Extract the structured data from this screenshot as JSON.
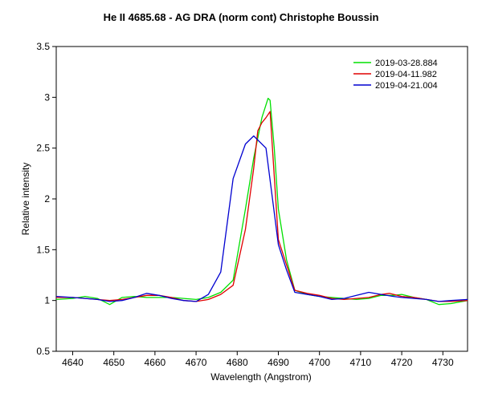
{
  "chart_data": {
    "type": "line",
    "title": "He II 4685.68 - AG DRA (norm cont)   Christophe Boussin",
    "xlabel": "Wavelength (Angstrom)",
    "ylabel": "Relative intensity",
    "xlim": [
      4636,
      4736
    ],
    "ylim": [
      0.5,
      3.5
    ],
    "xticks": [
      4640,
      4650,
      4660,
      4670,
      4680,
      4690,
      4700,
      4710,
      4720,
      4730
    ],
    "yticks": [
      0.5,
      1,
      1.5,
      2,
      2.5,
      3,
      3.5
    ],
    "ytick_labels": [
      "0.5",
      "1",
      "1.5",
      "2",
      "2.5",
      "3",
      "3.5"
    ],
    "grid": false,
    "legend_position": "top-right",
    "series": [
      {
        "name": "2019-03-28.884",
        "color": "#00e000",
        "points": [
          [
            4636,
            1.01
          ],
          [
            4640,
            1.02
          ],
          [
            4643,
            1.04
          ],
          [
            4646,
            1.02
          ],
          [
            4649,
            0.96
          ],
          [
            4652,
            1.03
          ],
          [
            4655,
            1.04
          ],
          [
            4658,
            1.03
          ],
          [
            4661,
            1.03
          ],
          [
            4664,
            1.03
          ],
          [
            4667,
            1.02
          ],
          [
            4670,
            1.01
          ],
          [
            4673,
            1.03
          ],
          [
            4676,
            1.08
          ],
          [
            4679,
            1.2
          ],
          [
            4682,
            1.9
          ],
          [
            4684,
            2.4
          ],
          [
            4686,
            2.8
          ],
          [
            4687.5,
            2.99
          ],
          [
            4688,
            2.97
          ],
          [
            4689,
            2.5
          ],
          [
            4690,
            1.9
          ],
          [
            4692,
            1.4
          ],
          [
            4694,
            1.1
          ],
          [
            4697,
            1.06
          ],
          [
            4700,
            1.04
          ],
          [
            4703,
            1.03
          ],
          [
            4706,
            1.02
          ],
          [
            4709,
            1.01
          ],
          [
            4712,
            1.02
          ],
          [
            4715,
            1.05
          ],
          [
            4718,
            1.05
          ],
          [
            4720,
            1.06
          ],
          [
            4723,
            1.03
          ],
          [
            4726,
            1.01
          ],
          [
            4729,
            0.96
          ],
          [
            4732,
            0.97
          ],
          [
            4736,
            1.0
          ]
        ]
      },
      {
        "name": "2019-04-11.982",
        "color": "#e00000",
        "points": [
          [
            4636,
            1.03
          ],
          [
            4640,
            1.03
          ],
          [
            4643,
            1.02
          ],
          [
            4646,
            1.01
          ],
          [
            4649,
            1.0
          ],
          [
            4652,
            1.01
          ],
          [
            4655,
            1.03
          ],
          [
            4658,
            1.05
          ],
          [
            4661,
            1.05
          ],
          [
            4664,
            1.03
          ],
          [
            4667,
            1.0
          ],
          [
            4670,
            0.99
          ],
          [
            4673,
            1.01
          ],
          [
            4676,
            1.06
          ],
          [
            4679,
            1.15
          ],
          [
            4682,
            1.7
          ],
          [
            4684,
            2.3
          ],
          [
            4685,
            2.67
          ],
          [
            4686,
            2.75
          ],
          [
            4687,
            2.8
          ],
          [
            4688,
            2.86
          ],
          [
            4690,
            1.6
          ],
          [
            4692,
            1.35
          ],
          [
            4694,
            1.1
          ],
          [
            4697,
            1.07
          ],
          [
            4700,
            1.05
          ],
          [
            4703,
            1.02
          ],
          [
            4706,
            1.01
          ],
          [
            4709,
            1.02
          ],
          [
            4712,
            1.03
          ],
          [
            4715,
            1.06
          ],
          [
            4717,
            1.07
          ],
          [
            4720,
            1.04
          ],
          [
            4723,
            1.03
          ],
          [
            4726,
            1.01
          ],
          [
            4729,
            0.99
          ],
          [
            4732,
            0.99
          ],
          [
            4736,
            1.0
          ]
        ]
      },
      {
        "name": "2019-04-21.004",
        "color": "#0000d0",
        "points": [
          [
            4636,
            1.04
          ],
          [
            4640,
            1.03
          ],
          [
            4643,
            1.02
          ],
          [
            4646,
            1.01
          ],
          [
            4649,
            0.99
          ],
          [
            4652,
            1.0
          ],
          [
            4655,
            1.03
          ],
          [
            4658,
            1.07
          ],
          [
            4661,
            1.05
          ],
          [
            4664,
            1.02
          ],
          [
            4667,
            1.0
          ],
          [
            4670,
            0.99
          ],
          [
            4673,
            1.06
          ],
          [
            4676,
            1.28
          ],
          [
            4679,
            2.2
          ],
          [
            4682,
            2.54
          ],
          [
            4684,
            2.62
          ],
          [
            4687,
            2.5
          ],
          [
            4690,
            1.55
          ],
          [
            4692,
            1.3
          ],
          [
            4694,
            1.08
          ],
          [
            4697,
            1.06
          ],
          [
            4700,
            1.04
          ],
          [
            4703,
            1.01
          ],
          [
            4706,
            1.02
          ],
          [
            4709,
            1.05
          ],
          [
            4712,
            1.08
          ],
          [
            4715,
            1.06
          ],
          [
            4718,
            1.04
          ],
          [
            4720,
            1.03
          ],
          [
            4723,
            1.02
          ],
          [
            4726,
            1.01
          ],
          [
            4729,
            0.99
          ],
          [
            4732,
            1.0
          ],
          [
            4736,
            1.01
          ]
        ]
      }
    ]
  }
}
